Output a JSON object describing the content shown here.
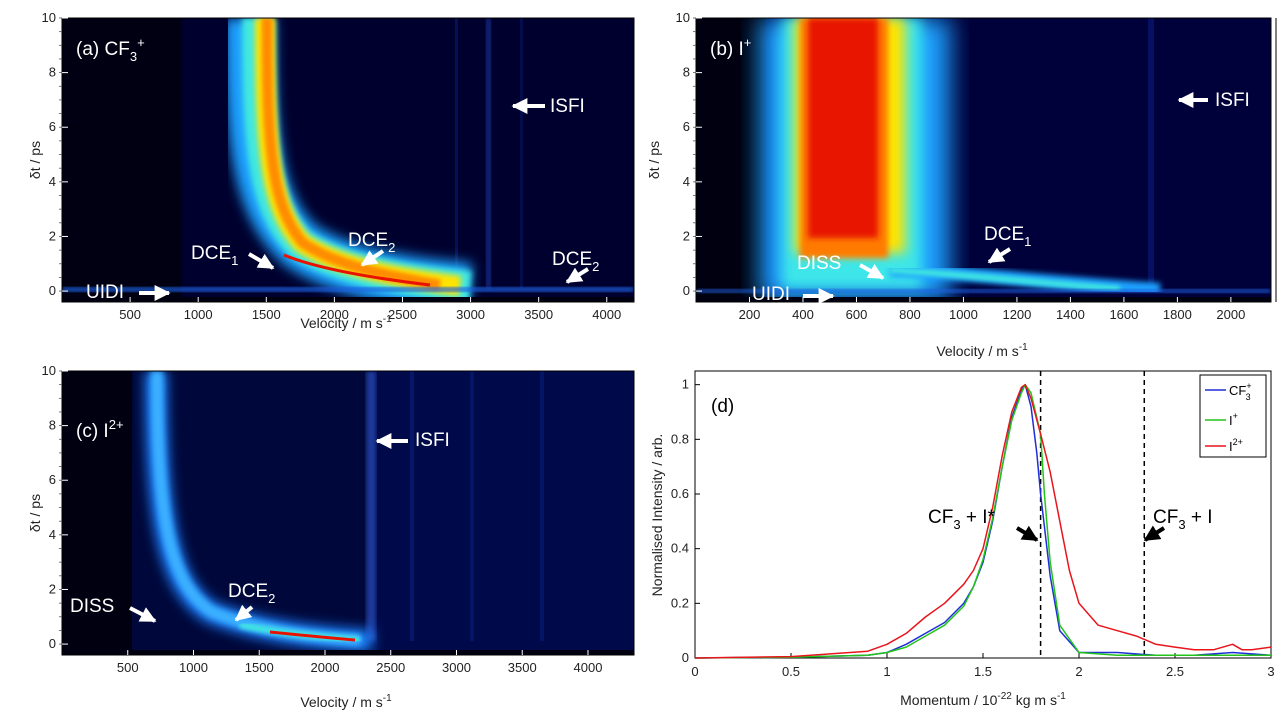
{
  "figure": {
    "panels": [
      {
        "id": "a",
        "label": "(a) CF",
        "label_sub": "3",
        "label_sup": "+",
        "xlabel": "Velocity / m s",
        "xlabel_sup": "-1",
        "ylabel": "δt / ps",
        "xticks": [
          500,
          1000,
          1500,
          2000,
          2500,
          3000,
          3500,
          4000
        ],
        "yticks": [
          0,
          2,
          4,
          6,
          8,
          10
        ],
        "annotations": [
          {
            "text": "ISFI"
          },
          {
            "text": "DCE",
            "sub": "1"
          },
          {
            "text": "DCE",
            "sub": "2"
          },
          {
            "text": "DCE",
            "sub": "2"
          },
          {
            "text": "UIDI"
          }
        ]
      },
      {
        "id": "b",
        "label": "(b) I",
        "label_sup": "+",
        "xlabel": "Velocity / m s",
        "xlabel_sup": "-1",
        "ylabel": "δt / ps",
        "xticks": [
          200,
          400,
          600,
          800,
          1000,
          1200,
          1400,
          1600,
          1800,
          2000
        ],
        "yticks": [
          0,
          2,
          4,
          6,
          8,
          10
        ],
        "annotations": [
          {
            "text": "ISFI"
          },
          {
            "text": "DCE",
            "sub": "1"
          },
          {
            "text": "DISS"
          },
          {
            "text": "UIDI"
          }
        ]
      },
      {
        "id": "c",
        "label": "(c) I",
        "label_sup": "2+",
        "xlabel": "Velocity / m s",
        "xlabel_sup": "-1",
        "ylabel": "δt / ps",
        "xticks": [
          500,
          1000,
          1500,
          2000,
          2500,
          3000,
          3500,
          4000
        ],
        "yticks": [
          0,
          2,
          4,
          6,
          8,
          10
        ],
        "annotations": [
          {
            "text": "ISFI"
          },
          {
            "text": "DCE",
            "sub": "2"
          },
          {
            "text": "DISS"
          }
        ]
      }
    ],
    "panel_d": {
      "label": "(d)",
      "xlabel": "Momentum / 10",
      "xlabel_sup": "-22",
      "xlabel_tail": " kg m s",
      "xlabel_tail_sup": "-1",
      "ylabel": "Normalised Intensity / arb.",
      "xticks": [
        "0",
        "0.5",
        "1",
        "1.5",
        "2",
        "2.5",
        "3"
      ],
      "yticks": [
        "0",
        "0.2",
        "0.4",
        "0.6",
        "0.8",
        "1"
      ],
      "thresholds": [
        {
          "text": "CF",
          "sub": "3",
          "tail": " + I*"
        },
        {
          "text": "CF",
          "sub": "3",
          "tail": " + I"
        }
      ],
      "legend": [
        {
          "label": "CF",
          "sub": "3",
          "sup": "+"
        },
        {
          "label": "I",
          "sup": "+"
        },
        {
          "label": "I",
          "sup": "2+"
        }
      ]
    }
  },
  "chart_data": [
    {
      "type": "heatmap",
      "title": "(a) CF3+",
      "xlabel": "Velocity / m s-1",
      "ylabel": "δt / ps",
      "xlim": [
        0,
        4200
      ],
      "ylim": [
        -0.4,
        10
      ],
      "colormap": "jet",
      "features": [
        {
          "name": "main band",
          "asymptote_velocity": 1550,
          "peak_velocity_at_0ps": 2600
        },
        {
          "name": "ISFI",
          "velocity": 3180
        },
        {
          "name": "UIDI",
          "dt": 0
        }
      ]
    },
    {
      "type": "heatmap",
      "title": "(b) I+",
      "xlabel": "Velocity / m s-1",
      "ylabel": "δt / ps",
      "xlim": [
        0,
        2150
      ],
      "ylim": [
        -0.4,
        10
      ],
      "colormap": "jet",
      "features": [
        {
          "name": "main band",
          "asymptote_velocity": 830,
          "peak_velocity_at_0ps": 1200
        },
        {
          "name": "ISFI",
          "velocity": 1700
        },
        {
          "name": "UIDI",
          "dt": 0
        }
      ]
    },
    {
      "type": "heatmap",
      "title": "(c) I2+",
      "xlabel": "Velocity / m s-1",
      "ylabel": "δt / ps",
      "xlim": [
        0,
        4350
      ],
      "ylim": [
        -0.4,
        10
      ],
      "colormap": "jet",
      "features": [
        {
          "name": "main band",
          "asymptote_velocity": 860,
          "peak_velocity_at_0ps": 2200
        },
        {
          "name": "ISFI",
          "velocity": 2370
        }
      ]
    },
    {
      "type": "line",
      "title": "(d)",
      "xlabel": "Momentum / 10-22 kg m s-1",
      "ylabel": "Normalised Intensity / arb.",
      "xlim": [
        0,
        3
      ],
      "ylim": [
        0,
        1.05
      ],
      "vlines": [
        1.8,
        2.34
      ],
      "series": [
        {
          "name": "CF3+",
          "color": "#1f2fd6",
          "x": [
            0.0,
            0.5,
            0.9,
            1.0,
            1.1,
            1.2,
            1.3,
            1.4,
            1.45,
            1.5,
            1.55,
            1.6,
            1.65,
            1.7,
            1.72,
            1.75,
            1.78,
            1.8,
            1.85,
            1.9,
            2.0,
            2.2,
            2.4,
            2.6,
            2.8,
            3.0
          ],
          "y": [
            0.0,
            0.003,
            0.01,
            0.02,
            0.05,
            0.09,
            0.13,
            0.2,
            0.26,
            0.35,
            0.5,
            0.7,
            0.88,
            0.98,
            1.0,
            0.92,
            0.75,
            0.6,
            0.3,
            0.1,
            0.02,
            0.02,
            0.01,
            0.01,
            0.02,
            0.01
          ]
        },
        {
          "name": "I+",
          "color": "#22c41a",
          "x": [
            0.0,
            0.5,
            0.9,
            1.0,
            1.1,
            1.2,
            1.3,
            1.4,
            1.45,
            1.5,
            1.55,
            1.6,
            1.65,
            1.7,
            1.72,
            1.75,
            1.8,
            1.82,
            1.85,
            1.9,
            2.0,
            2.2,
            2.4,
            2.6,
            2.8,
            3.0
          ],
          "y": [
            0.0,
            0.003,
            0.01,
            0.02,
            0.04,
            0.08,
            0.12,
            0.19,
            0.26,
            0.36,
            0.51,
            0.7,
            0.87,
            0.97,
            1.0,
            0.97,
            0.82,
            0.6,
            0.35,
            0.12,
            0.02,
            0.01,
            0.01,
            0.01,
            0.01,
            0.01
          ]
        },
        {
          "name": "I2+",
          "color": "#e8151d",
          "x": [
            0.0,
            0.5,
            0.9,
            1.0,
            1.1,
            1.2,
            1.3,
            1.4,
            1.45,
            1.5,
            1.55,
            1.6,
            1.65,
            1.7,
            1.72,
            1.75,
            1.8,
            1.85,
            1.9,
            1.95,
            2.0,
            2.1,
            2.2,
            2.3,
            2.4,
            2.5,
            2.6,
            2.7,
            2.8,
            2.85,
            2.9,
            3.0
          ],
          "y": [
            0.0,
            0.005,
            0.025,
            0.05,
            0.09,
            0.15,
            0.2,
            0.27,
            0.32,
            0.4,
            0.55,
            0.74,
            0.9,
            0.99,
            1.0,
            0.95,
            0.82,
            0.68,
            0.5,
            0.32,
            0.2,
            0.12,
            0.1,
            0.08,
            0.05,
            0.04,
            0.03,
            0.03,
            0.05,
            0.03,
            0.03,
            0.04
          ]
        }
      ]
    }
  ]
}
